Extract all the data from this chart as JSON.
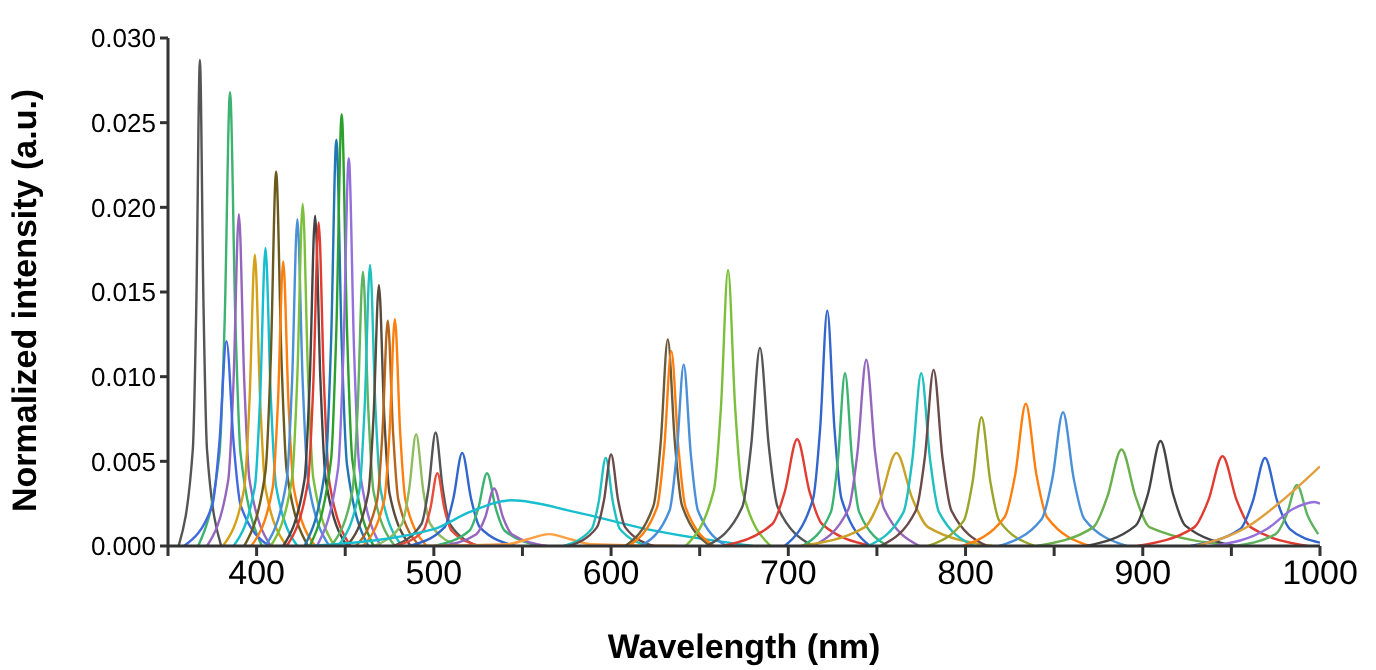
{
  "chart_data": {
    "type": "line",
    "xlabel": "Wavelength (nm)",
    "ylabel": "Normalized intensity (a.u.)",
    "xlim": [
      350,
      1000
    ],
    "ylim": [
      0,
      0.03
    ],
    "xticks": [
      {
        "value": 350,
        "label": null
      },
      400,
      {
        "value": 450,
        "label": null
      },
      500,
      {
        "value": 550,
        "label": null
      },
      600,
      {
        "value": 650,
        "label": null
      },
      700,
      {
        "value": 750,
        "label": null
      },
      800,
      {
        "value": 850,
        "label": null
      },
      900,
      {
        "value": 950,
        "label": null
      },
      1000
    ],
    "yticks": [
      {
        "value": 0,
        "label": "0.000"
      },
      {
        "value": 0.005,
        "label": "0.005"
      },
      {
        "value": 0.01,
        "label": "0.010"
      },
      {
        "value": 0.015,
        "label": "0.015"
      },
      {
        "value": 0.02,
        "label": "0.020"
      },
      {
        "value": 0.025,
        "label": "0.025"
      },
      {
        "value": 0.03,
        "label": "0.030"
      }
    ],
    "series": [
      {
        "color": "#555555",
        "x": [
          356,
          364,
          366,
          368,
          370,
          372,
          380
        ],
        "values": [
          0,
          0.0057,
          0.0144,
          0.0287,
          0.0144,
          0.0057,
          0
        ]
      },
      {
        "color": "#3cb371",
        "x": [
          367,
          379,
          382,
          385,
          388,
          391,
          403
        ],
        "values": [
          0,
          0.0054,
          0.0134,
          0.0268,
          0.0134,
          0.0054,
          0
        ]
      },
      {
        "color": "#9467bd",
        "x": [
          372,
          384,
          387,
          390,
          393,
          396,
          408
        ],
        "values": [
          0,
          0.0039,
          0.0098,
          0.0196,
          0.0098,
          0.0039,
          0
        ]
      },
      {
        "color": "#4169e1",
        "x": [
          359,
          375,
          379,
          383,
          387,
          391,
          407
        ],
        "values": [
          0,
          0.0024,
          0.0061,
          0.0121,
          0.0061,
          0.0024,
          0
        ]
      },
      {
        "color": "#d4a017",
        "x": [
          381,
          393,
          396,
          399,
          402,
          405,
          417
        ],
        "values": [
          0,
          0.0034,
          0.0086,
          0.0172,
          0.0086,
          0.0034,
          0
        ]
      },
      {
        "color": "#17becf",
        "x": [
          387,
          399,
          402,
          405,
          408,
          411,
          423
        ],
        "values": [
          0,
          0.0035,
          0.0088,
          0.0176,
          0.0088,
          0.0035,
          0
        ]
      },
      {
        "color": "#6b5a1e",
        "x": [
          393,
          405,
          408,
          411,
          414,
          417,
          429
        ],
        "values": [
          0,
          0.0044,
          0.0111,
          0.0221,
          0.0111,
          0.0044,
          0
        ]
      },
      {
        "color": "#ff7f0e",
        "x": [
          397,
          409,
          412,
          415,
          418,
          421,
          433
        ],
        "values": [
          0,
          0.0034,
          0.0084,
          0.0168,
          0.0084,
          0.0034,
          0
        ]
      },
      {
        "color": "#4a90d9",
        "x": [
          405,
          417,
          420,
          423,
          426,
          429,
          441
        ],
        "values": [
          0,
          0.0039,
          0.0097,
          0.0193,
          0.0097,
          0.0039,
          0
        ]
      },
      {
        "color": "#7cbf3c",
        "x": [
          408,
          420,
          423,
          426,
          429,
          432,
          444
        ],
        "values": [
          0,
          0.004,
          0.0101,
          0.0202,
          0.0101,
          0.004,
          0
        ]
      },
      {
        "color": "#444444",
        "x": [
          415,
          427,
          430,
          433,
          436,
          439,
          451
        ],
        "values": [
          0,
          0.0039,
          0.0098,
          0.0195,
          0.0098,
          0.0039,
          0
        ]
      },
      {
        "color": "#e03c31",
        "x": [
          417,
          429,
          432,
          435,
          438,
          441,
          453
        ],
        "values": [
          0,
          0.0038,
          0.0096,
          0.0191,
          0.0096,
          0.0038,
          0
        ]
      },
      {
        "color": "#1f77b4",
        "x": [
          427,
          439,
          442,
          445,
          448,
          451,
          463
        ],
        "values": [
          0,
          0.0048,
          0.012,
          0.024,
          0.012,
          0.0048,
          0
        ]
      },
      {
        "color": "#2ca02c",
        "x": [
          430,
          442,
          445,
          448,
          451,
          454,
          466
        ],
        "values": [
          0,
          0.0051,
          0.0128,
          0.0255,
          0.0128,
          0.0051,
          0
        ]
      },
      {
        "color": "#9370db",
        "x": [
          434,
          446,
          449,
          452,
          455,
          458,
          470
        ],
        "values": [
          0,
          0.0046,
          0.0115,
          0.0229,
          0.0115,
          0.0046,
          0
        ]
      },
      {
        "color": "#5fb360",
        "x": [
          442,
          454,
          457,
          460,
          463,
          466,
          478
        ],
        "values": [
          0,
          0.0032,
          0.0081,
          0.0162,
          0.0081,
          0.0032,
          0
        ]
      },
      {
        "color": "#20c0c0",
        "x": [
          446,
          458,
          461,
          464,
          467,
          470,
          482
        ],
        "values": [
          0,
          0.0033,
          0.0083,
          0.0166,
          0.0083,
          0.0033,
          0
        ]
      },
      {
        "color": "#5a4a3a",
        "x": [
          451,
          463,
          466,
          469,
          472,
          475,
          487
        ],
        "values": [
          0,
          0.0031,
          0.0077,
          0.0154,
          0.0077,
          0.0031,
          0
        ]
      },
      {
        "color": "#b5651d",
        "x": [
          456,
          468,
          471,
          474,
          477,
          480,
          492
        ],
        "values": [
          0,
          0.0027,
          0.0067,
          0.0133,
          0.0067,
          0.0027,
          0
        ]
      },
      {
        "color": "#ff7f0e",
        "x": [
          460,
          472,
          475,
          478,
          481,
          484,
          496
        ],
        "values": [
          0,
          0.0027,
          0.0067,
          0.0134,
          0.0067,
          0.0027,
          0
        ]
      },
      {
        "color": "#8fbc5f",
        "x": [
          466,
          482,
          486,
          490,
          494,
          498,
          514
        ],
        "values": [
          0,
          0.0013,
          0.0033,
          0.0066,
          0.0033,
          0.0013,
          0
        ]
      },
      {
        "color": "#555555",
        "x": [
          477,
          493,
          497,
          501,
          505,
          509,
          525
        ],
        "values": [
          0,
          0.0013,
          0.0034,
          0.0067,
          0.0034,
          0.0013,
          0
        ]
      },
      {
        "color": "#e74c3c",
        "x": [
          478,
          494,
          498,
          502,
          506,
          510,
          526
        ],
        "values": [
          0,
          0.0009,
          0.0022,
          0.0043,
          0.0022,
          0.0009,
          0
        ]
      },
      {
        "color": "#3366cc",
        "x": [
          486,
          506,
          511,
          516,
          521,
          526,
          546
        ],
        "values": [
          0,
          0.0011,
          0.0028,
          0.0055,
          0.0028,
          0.0011,
          0
        ]
      },
      {
        "color": "#3cb371",
        "x": [
          500,
          520,
          525,
          530,
          535,
          540,
          560
        ],
        "values": [
          0,
          0.0009,
          0.0022,
          0.0043,
          0.0022,
          0.0009,
          0
        ]
      },
      {
        "color": "#9467bd",
        "x": [
          504,
          524,
          529,
          534,
          539,
          544,
          564
        ],
        "values": [
          0,
          0.0007,
          0.0017,
          0.0034,
          0.0017,
          0.0007,
          0
        ]
      },
      {
        "color": "#17becf",
        "x": [
          430,
          500,
          520,
          544,
          580,
          620,
          680
        ],
        "values": [
          0,
          0.001,
          0.002,
          0.0027,
          0.002,
          0.001,
          0
        ]
      },
      {
        "color": "#ff9f40",
        "x": [
          493,
          541,
          553,
          565,
          577,
          589,
          637
        ],
        "values": [
          0,
          0.0001,
          0.0004,
          0.0007,
          0.0004,
          0.0001,
          0
        ]
      },
      {
        "color": "#20c0c0",
        "x": [
          573,
          589,
          593,
          597,
          601,
          605,
          621
        ],
        "values": [
          0,
          0.001,
          0.0026,
          0.0052,
          0.0026,
          0.001,
          0
        ]
      },
      {
        "color": "#6b4a4a",
        "x": [
          576,
          592,
          596,
          600,
          604,
          608,
          624
        ],
        "values": [
          0,
          0.0011,
          0.0027,
          0.0054,
          0.0027,
          0.0011,
          0
        ]
      },
      {
        "color": "#6b5a3a",
        "x": [
          608,
          624,
          628,
          632,
          636,
          640,
          656
        ],
        "values": [
          0,
          0.0024,
          0.0061,
          0.0122,
          0.0061,
          0.0024,
          0
        ]
      },
      {
        "color": "#ff7f0e",
        "x": [
          610,
          626,
          630,
          634,
          638,
          642,
          658
        ],
        "values": [
          0,
          0.0023,
          0.0058,
          0.0115,
          0.0058,
          0.0023,
          0
        ]
      },
      {
        "color": "#4a90d9",
        "x": [
          617,
          633,
          637,
          641,
          645,
          649,
          665
        ],
        "values": [
          0,
          0.0021,
          0.0054,
          0.0107,
          0.0054,
          0.0021,
          0
        ]
      },
      {
        "color": "#7cbf3c",
        "x": [
          642,
          658,
          662,
          666,
          670,
          674,
          690
        ],
        "values": [
          0,
          0.0033,
          0.0082,
          0.0163,
          0.0082,
          0.0033,
          0
        ]
      },
      {
        "color": "#555555",
        "x": [
          654,
          674,
          679,
          684,
          689,
          694,
          714
        ],
        "values": [
          0,
          0.0023,
          0.0059,
          0.0117,
          0.0059,
          0.0023,
          0
        ]
      },
      {
        "color": "#e03c31",
        "x": [
          663,
          691,
          698,
          705,
          712,
          719,
          747
        ],
        "values": [
          0,
          0.0013,
          0.0032,
          0.0063,
          0.0032,
          0.0013,
          0
        ]
      },
      {
        "color": "#3366cc",
        "x": [
          698,
          714,
          718,
          722,
          726,
          730,
          746
        ],
        "values": [
          0,
          0.0028,
          0.007,
          0.0139,
          0.007,
          0.0028,
          0
        ]
      },
      {
        "color": "#3cb371",
        "x": [
          708,
          724,
          728,
          732,
          736,
          740,
          756
        ],
        "values": [
          0,
          0.002,
          0.0051,
          0.0102,
          0.0051,
          0.002,
          0
        ]
      },
      {
        "color": "#9467bd",
        "x": [
          714,
          734,
          739,
          744,
          749,
          754,
          774
        ],
        "values": [
          0,
          0.0022,
          0.0055,
          0.011,
          0.0055,
          0.0022,
          0
        ]
      },
      {
        "color": "#c9a227",
        "x": [
          707,
          743,
          752,
          761,
          770,
          779,
          815
        ],
        "values": [
          0,
          0.0011,
          0.0028,
          0.0055,
          0.0028,
          0.0011,
          0
        ]
      },
      {
        "color": "#20c0c0",
        "x": [
          745,
          765,
          770,
          775,
          780,
          785,
          805
        ],
        "values": [
          0,
          0.002,
          0.0051,
          0.0102,
          0.0051,
          0.002,
          0
        ]
      },
      {
        "color": "#6b4a4a",
        "x": [
          752,
          772,
          777,
          782,
          787,
          792,
          812
        ],
        "values": [
          0,
          0.0021,
          0.0052,
          0.0104,
          0.0052,
          0.0021,
          0
        ]
      },
      {
        "color": "#9aa52a",
        "x": [
          779,
          799,
          804,
          809,
          814,
          819,
          839
        ],
        "values": [
          0,
          0.0015,
          0.0038,
          0.0076,
          0.0038,
          0.0015,
          0
        ]
      },
      {
        "color": "#ff7f0e",
        "x": [
          798,
          822,
          828,
          834,
          840,
          846,
          870
        ],
        "values": [
          0,
          0.0017,
          0.0042,
          0.0084,
          0.0042,
          0.0017,
          0
        ]
      },
      {
        "color": "#4a90d9",
        "x": [
          819,
          843,
          849,
          855,
          861,
          867,
          891
        ],
        "values": [
          0,
          0.0016,
          0.004,
          0.0079,
          0.004,
          0.0016,
          0
        ]
      },
      {
        "color": "#6ab04c",
        "x": [
          840,
          872,
          880,
          888,
          896,
          904,
          952
        ],
        "values": [
          0,
          0.0011,
          0.0029,
          0.0057,
          0.0029,
          0.0011,
          0
        ]
      },
      {
        "color": "#444444",
        "x": [
          868,
          896,
          903,
          910,
          917,
          924,
          952
        ],
        "values": [
          0,
          0.0012,
          0.0031,
          0.0062,
          0.0031,
          0.0012,
          0
        ]
      },
      {
        "color": "#e03c31",
        "x": [
          897,
          929,
          937,
          945,
          953,
          961,
          993
        ],
        "values": [
          0,
          0.0011,
          0.0027,
          0.0053,
          0.0027,
          0.0011,
          0
        ]
      },
      {
        "color": "#3366cc",
        "x": [
          927,
          955,
          962,
          969,
          976,
          983,
          1000
        ],
        "values": [
          0,
          0.001,
          0.0026,
          0.0052,
          0.0026,
          0.001,
          0.0002
        ]
      },
      {
        "color": "#5fb360",
        "x": [
          951,
          975,
          981,
          987,
          993,
          999
        ],
        "values": [
          0,
          0.0007,
          0.0018,
          0.0036,
          0.0018,
          0.0007
        ]
      },
      {
        "color": "#9370db",
        "x": [
          940,
          970,
          985,
          997,
          1000
        ],
        "values": [
          0,
          0.001,
          0.0022,
          0.0026,
          0.0025
        ]
      },
      {
        "color": "#e0a040",
        "x": [
          930,
          960,
          980,
          1000
        ],
        "values": [
          0,
          0.0012,
          0.0028,
          0.0047
        ]
      }
    ]
  }
}
